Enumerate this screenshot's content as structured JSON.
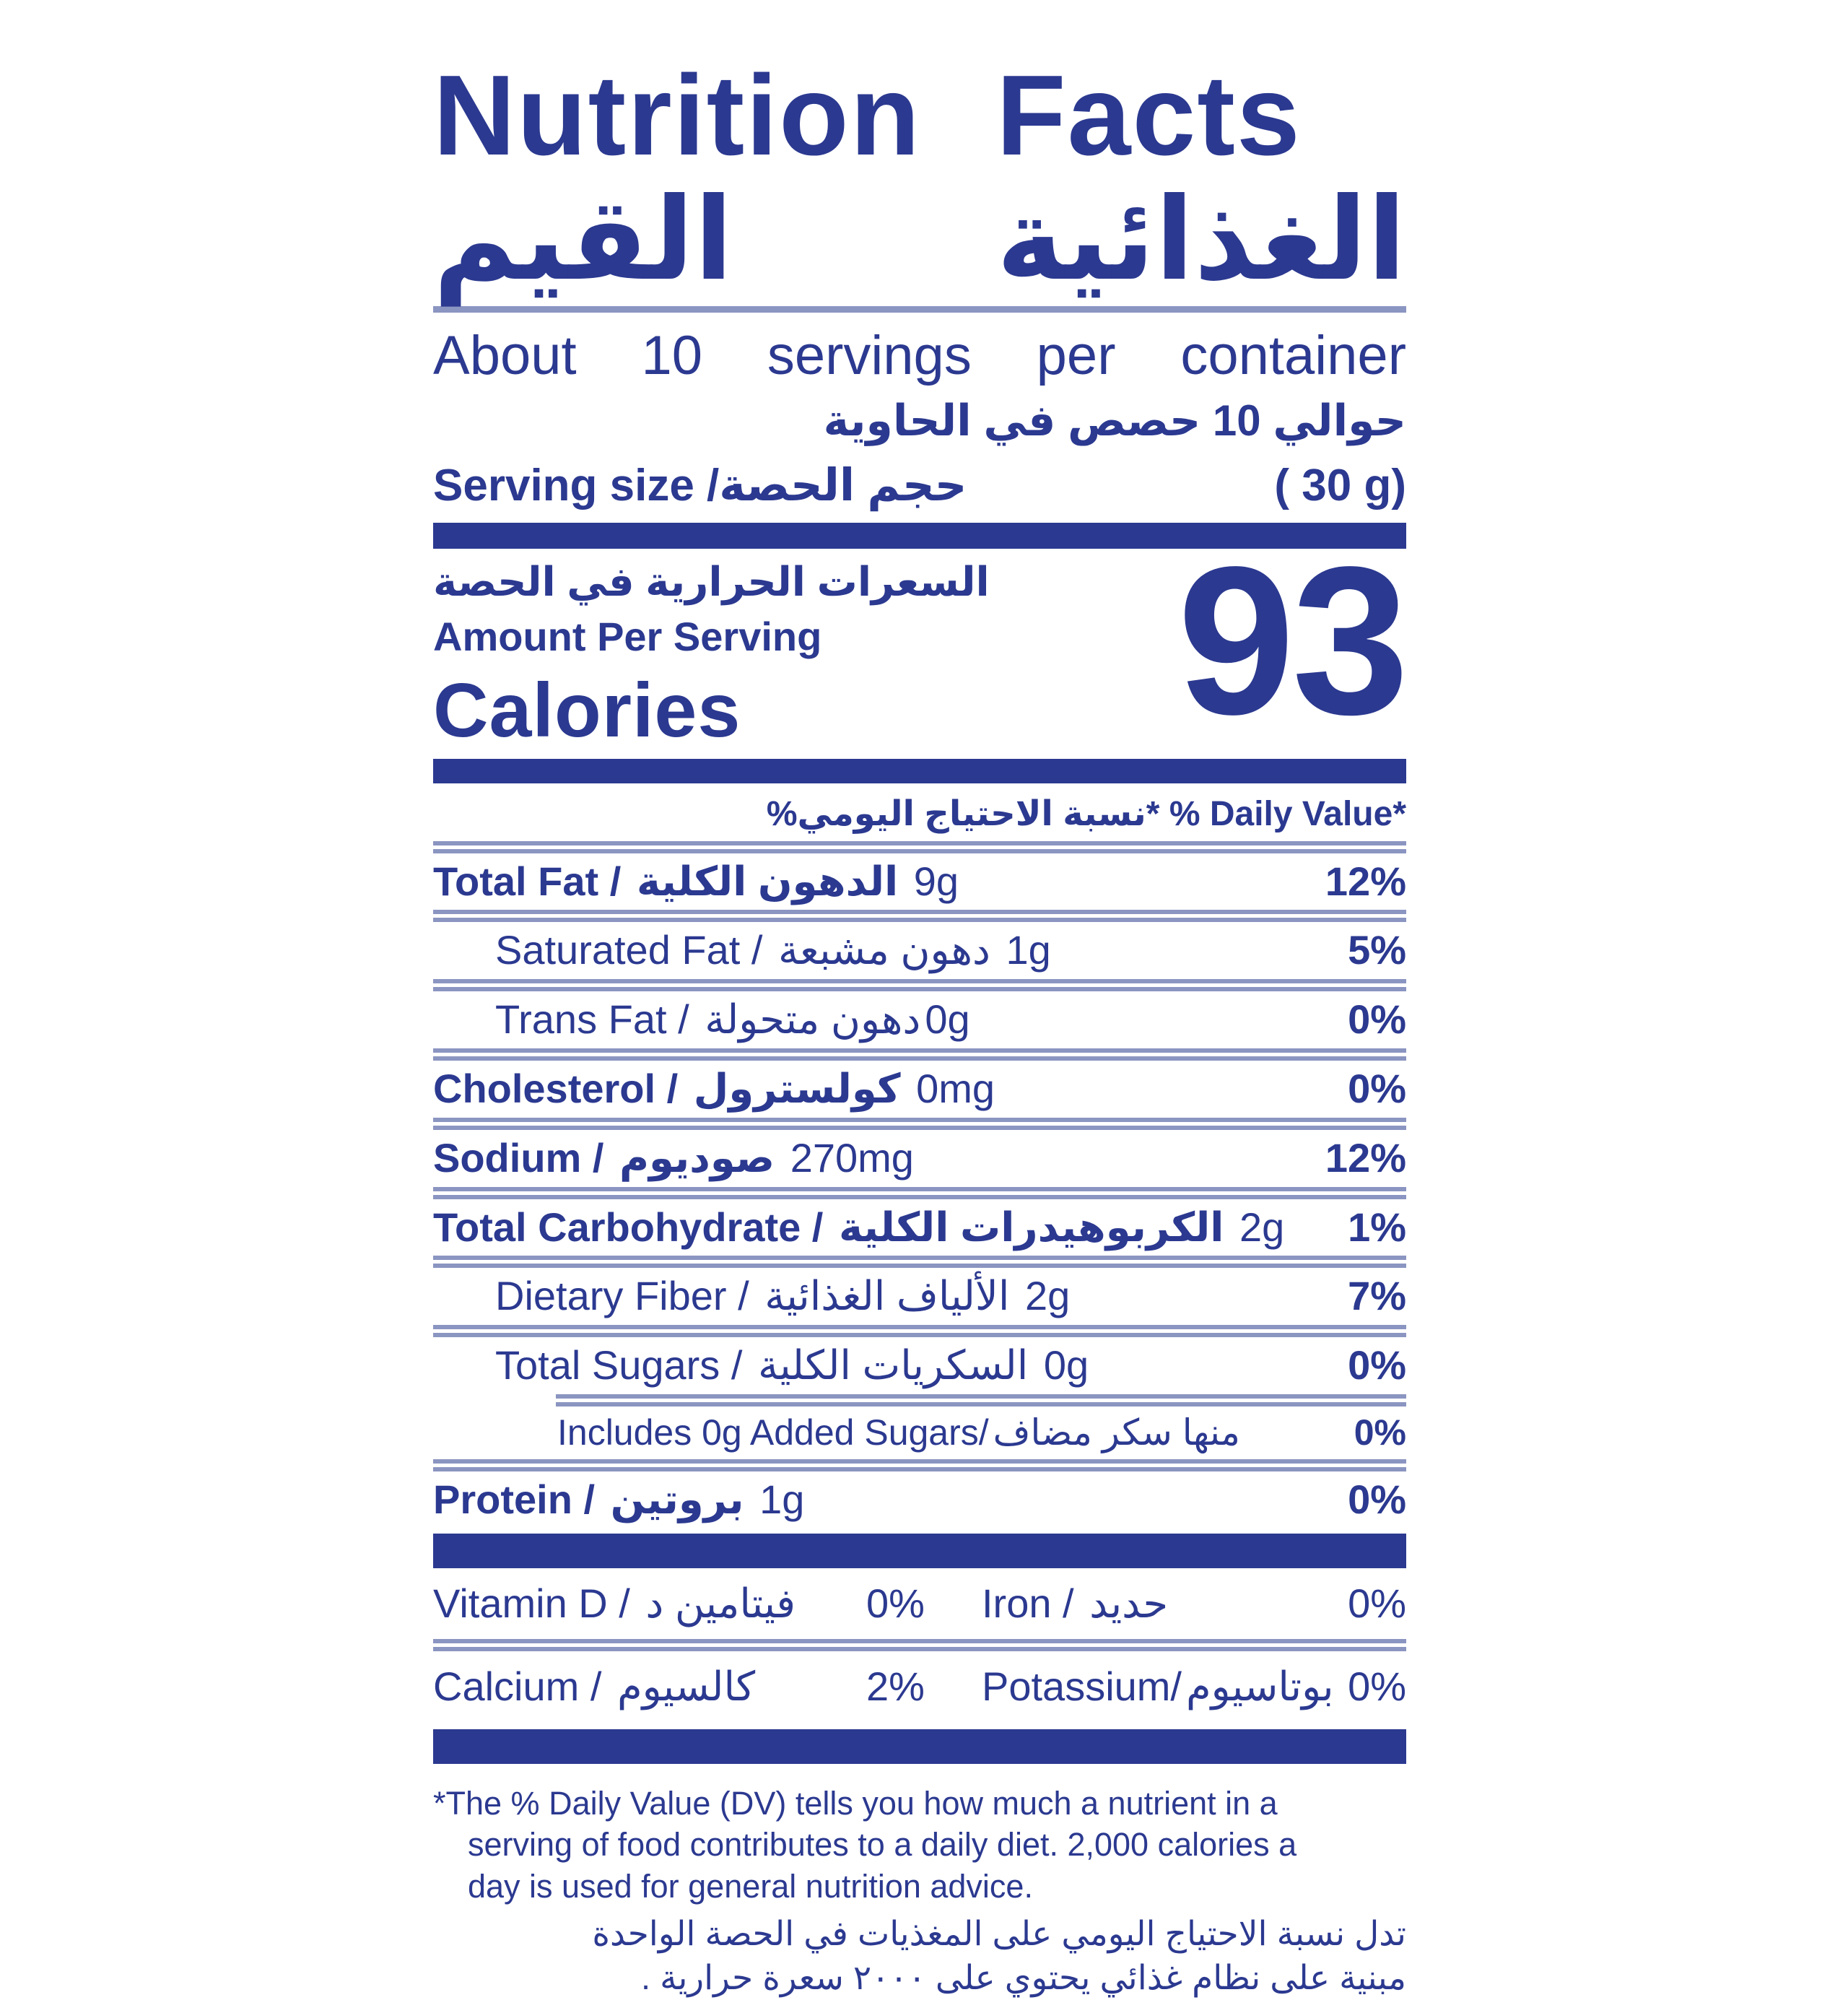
{
  "colors": {
    "navy": "#2B3990",
    "rule_slate": "#8B95C1",
    "background": "#FFFFFF"
  },
  "header": {
    "title_en": "Nutrition Facts",
    "title_ar_word1": "القيم",
    "title_ar_word2": "الغذائية"
  },
  "servings": {
    "per_container_en": "About 10 servings per container",
    "per_container_ar": "حوالي 10 حصص في الحاوية",
    "serving_size_en": "Serving size /",
    "serving_size_ar": "حجم الحصة",
    "serving_size_value": "( 30 g)"
  },
  "calories": {
    "ar": "السعرات الحرارية في الحصة",
    "amount_per_serving": "Amount Per Serving",
    "label": "Calories",
    "value": "93"
  },
  "daily_value_header": {
    "ar": "نسبة الاحتياج اليومي%",
    "star": "*",
    "en": " % Daily Value*"
  },
  "nutrients": [
    {
      "en": "Total Fat / ",
      "ar": "الدهون الكلية",
      "value": " 9g",
      "pct": "12%"
    },
    {
      "en": "Saturated Fat / ",
      "ar": "دهون مشبعة",
      "value": " 1g",
      "pct": "5%"
    },
    {
      "en": "Trans Fat / ",
      "ar": "دهون متحولة",
      "value": "0g",
      "pct": "0%"
    },
    {
      "en": "Cholesterol / ",
      "ar": "كولسترول",
      "value": " 0mg",
      "pct": "0%"
    },
    {
      "en": "Sodium / ",
      "ar": "صوديوم",
      "value": " 270mg",
      "pct": "12%"
    },
    {
      "en": "Total Carbohydrate / ",
      "ar": "الكربوهيدرات الكلية",
      "value": " 2g",
      "pct": "1%"
    },
    {
      "en": "Dietary Fiber / ",
      "ar": "الألياف الغذائية",
      "value": " 2g",
      "pct": "7%"
    },
    {
      "en": "Total Sugars / ",
      "ar": "السكريات الكلية",
      "value": " 0g",
      "pct": "0%"
    },
    {
      "en": "Includes 0g Added Sugars/",
      "ar": "منها سكر مضاف",
      "value": "",
      "pct": "0%"
    },
    {
      "en": "Protein / ",
      "ar": "بروتين",
      "value": " 1g",
      "pct": "0%"
    }
  ],
  "micronutrients": [
    {
      "en1": "Vitamin D / ",
      "ar1": "فيتامين د",
      "pct1": "0%",
      "en2": "Iron / ",
      "ar2": "حديد",
      "pct2": "0%"
    },
    {
      "en1": "Calcium / ",
      "ar1": "كالسيوم",
      "pct1": "2%",
      "en2": "Potassium/",
      "ar2": "بوتاسيوم",
      "pct2": "0%"
    }
  ],
  "footnote": {
    "en_line1": "*The % Daily Value (DV) tells you how much a nutrient in a",
    "en_line2": "serving of food contributes to a daily diet. 2,000 calories a",
    "en_line3": "day is used for general nutrition advice.",
    "ar_line1": "تدل نسبة الاحتياج اليومي على المغذيات في الحصة الواحدة",
    "ar_line2": "مبنية على نظام غذائي يحتوي على ٢٠٠٠ سعرة حرارية ."
  }
}
